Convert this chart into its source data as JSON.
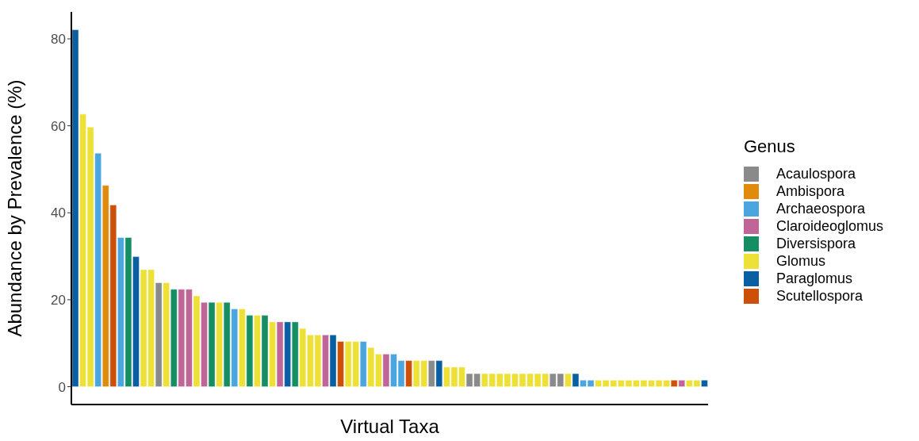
{
  "chart_data": {
    "type": "bar",
    "xlabel": "Virtual Taxa",
    "ylabel": "Abundance by Prevalence (%)",
    "legend_title": "Genus",
    "categories": [
      null,
      null,
      null,
      null,
      null,
      null,
      null,
      null,
      null,
      null,
      null,
      null,
      null,
      null,
      null,
      null,
      null,
      null,
      null,
      null,
      null,
      null,
      null,
      null,
      null,
      null,
      null,
      null,
      null,
      null,
      null,
      null,
      null,
      null,
      null,
      null,
      null,
      null,
      null,
      null,
      null,
      null,
      null,
      null,
      null,
      null,
      null,
      null,
      null,
      null,
      null,
      null,
      null,
      null,
      null,
      null,
      null,
      null,
      null,
      null,
      null,
      null,
      null,
      null,
      null,
      null,
      null,
      null,
      null,
      null,
      null,
      null,
      null,
      null,
      null,
      null,
      null,
      null,
      null,
      null,
      null,
      null,
      null,
      null
    ],
    "stacked": true,
    "ylim": [
      -4.1,
      86.2
    ],
    "yticks": [
      0,
      20,
      40,
      60,
      80
    ],
    "grid": false,
    "legend": "right",
    "series": [
      {
        "name": "Acaulospora",
        "color": "#8a8a8a",
        "values": [
          null,
          null,
          null,
          null,
          null,
          null,
          null,
          null,
          null,
          null,
          null,
          23.9,
          null,
          null,
          null,
          null,
          null,
          null,
          null,
          null,
          null,
          null,
          null,
          null,
          null,
          null,
          null,
          null,
          null,
          null,
          null,
          null,
          null,
          null,
          null,
          null,
          null,
          null,
          null,
          null,
          null,
          null,
          null,
          null,
          null,
          null,
          null,
          6.0,
          null,
          null,
          null,
          null,
          3.0,
          3.0,
          null,
          null,
          null,
          null,
          null,
          null,
          null,
          null,
          null,
          3.0,
          3.0,
          null,
          null,
          null,
          null,
          null,
          null,
          null,
          null,
          null,
          null,
          null,
          null,
          null,
          null,
          null,
          null,
          null,
          null,
          null
        ]
      },
      {
        "name": "Ambispora",
        "color": "#e08c0a",
        "values": [
          null,
          null,
          null,
          null,
          46.3,
          null,
          null,
          null,
          null,
          null,
          null,
          null,
          null,
          null,
          null,
          null,
          null,
          null,
          null,
          null,
          null,
          null,
          null,
          null,
          null,
          null,
          null,
          null,
          null,
          null,
          null,
          null,
          null,
          null,
          null,
          null,
          null,
          null,
          null,
          null,
          null,
          null,
          null,
          null,
          null,
          null,
          null,
          null,
          null,
          null,
          null,
          null,
          null,
          null,
          null,
          null,
          null,
          null,
          null,
          null,
          null,
          null,
          null,
          null,
          null,
          null,
          null,
          null,
          null,
          null,
          null,
          null,
          null,
          null,
          null,
          null,
          null,
          null,
          null,
          null,
          null,
          null,
          null,
          null
        ]
      },
      {
        "name": "Archaeospora",
        "color": "#4ba6e0",
        "values": [
          null,
          null,
          null,
          53.7,
          null,
          null,
          34.3,
          null,
          null,
          null,
          null,
          null,
          null,
          null,
          null,
          null,
          null,
          null,
          null,
          null,
          null,
          17.9,
          null,
          null,
          null,
          null,
          null,
          null,
          null,
          null,
          null,
          null,
          null,
          null,
          null,
          null,
          null,
          null,
          10.4,
          null,
          null,
          null,
          7.5,
          6.0,
          null,
          null,
          null,
          null,
          null,
          null,
          null,
          null,
          null,
          null,
          null,
          null,
          null,
          null,
          null,
          null,
          null,
          null,
          null,
          null,
          null,
          null,
          null,
          1.5,
          1.5,
          null,
          null,
          null,
          null,
          null,
          null,
          null,
          null,
          null,
          null,
          null,
          null,
          null,
          null,
          null
        ]
      },
      {
        "name": "Claroideoglomus",
        "color": "#c06598",
        "values": [
          null,
          null,
          null,
          null,
          null,
          null,
          null,
          null,
          null,
          null,
          null,
          null,
          null,
          null,
          22.4,
          22.4,
          null,
          19.4,
          null,
          null,
          null,
          null,
          null,
          null,
          null,
          null,
          null,
          14.9,
          null,
          null,
          null,
          null,
          null,
          11.9,
          null,
          null,
          null,
          null,
          null,
          null,
          null,
          7.5,
          null,
          null,
          null,
          null,
          null,
          null,
          null,
          null,
          null,
          null,
          null,
          null,
          null,
          null,
          null,
          null,
          null,
          null,
          null,
          null,
          null,
          null,
          null,
          null,
          null,
          null,
          null,
          null,
          null,
          null,
          null,
          null,
          null,
          null,
          null,
          null,
          null,
          null,
          1.5,
          null,
          null,
          null
        ]
      },
      {
        "name": "Diversispora",
        "color": "#168e63",
        "values": [
          null,
          null,
          null,
          null,
          null,
          null,
          null,
          34.3,
          null,
          null,
          null,
          null,
          null,
          22.4,
          null,
          null,
          null,
          null,
          19.4,
          null,
          19.4,
          null,
          null,
          16.4,
          null,
          16.4,
          null,
          null,
          null,
          14.9,
          null,
          null,
          null,
          null,
          null,
          null,
          null,
          null,
          null,
          null,
          null,
          null,
          null,
          null,
          null,
          null,
          null,
          null,
          null,
          null,
          null,
          null,
          null,
          null,
          null,
          null,
          null,
          null,
          null,
          null,
          null,
          null,
          null,
          null,
          null,
          null,
          null,
          null,
          null,
          null,
          null,
          null,
          null,
          null,
          null,
          null,
          null,
          null,
          null,
          null,
          null,
          null,
          null,
          null
        ]
      },
      {
        "name": "Glomus",
        "color": "#ede137",
        "values": [
          null,
          62.7,
          59.7,
          null,
          null,
          null,
          null,
          null,
          null,
          26.9,
          26.9,
          null,
          23.9,
          null,
          null,
          null,
          20.9,
          null,
          null,
          19.4,
          null,
          null,
          17.9,
          null,
          16.4,
          null,
          14.9,
          null,
          null,
          null,
          13.4,
          11.9,
          11.9,
          null,
          null,
          null,
          10.4,
          10.4,
          null,
          9.0,
          7.5,
          null,
          null,
          null,
          null,
          6.0,
          6.0,
          null,
          null,
          4.5,
          4.5,
          4.5,
          null,
          null,
          3.0,
          3.0,
          3.0,
          3.0,
          3.0,
          3.0,
          3.0,
          3.0,
          3.0,
          null,
          null,
          3.0,
          null,
          null,
          null,
          1.5,
          1.5,
          1.5,
          1.5,
          1.5,
          1.5,
          1.5,
          1.5,
          1.5,
          1.5,
          null,
          null,
          1.5,
          1.5,
          null
        ]
      },
      {
        "name": "Paraglomus",
        "color": "#0a5fa3",
        "values": [
          82.1,
          null,
          null,
          null,
          null,
          null,
          null,
          null,
          29.9,
          null,
          null,
          null,
          null,
          null,
          null,
          null,
          null,
          null,
          null,
          null,
          null,
          null,
          null,
          null,
          null,
          null,
          null,
          null,
          14.9,
          null,
          null,
          null,
          null,
          null,
          11.9,
          null,
          null,
          null,
          null,
          null,
          null,
          null,
          null,
          null,
          null,
          null,
          null,
          null,
          6.0,
          null,
          null,
          null,
          null,
          null,
          null,
          null,
          null,
          null,
          null,
          null,
          null,
          null,
          null,
          null,
          null,
          null,
          3.0,
          null,
          null,
          null,
          null,
          null,
          null,
          null,
          null,
          null,
          null,
          null,
          null,
          null,
          null,
          null,
          null,
          1.5
        ]
      },
      {
        "name": "Scutellospora",
        "color": "#cc4f0a",
        "values": [
          null,
          null,
          null,
          null,
          null,
          41.8,
          null,
          null,
          null,
          null,
          null,
          null,
          null,
          null,
          null,
          null,
          null,
          null,
          null,
          null,
          null,
          null,
          null,
          null,
          null,
          null,
          null,
          null,
          null,
          null,
          null,
          null,
          null,
          null,
          null,
          10.4,
          null,
          null,
          null,
          null,
          null,
          null,
          null,
          null,
          6.0,
          null,
          null,
          null,
          null,
          null,
          null,
          null,
          null,
          null,
          null,
          null,
          null,
          null,
          null,
          null,
          null,
          null,
          null,
          null,
          null,
          null,
          null,
          null,
          null,
          null,
          null,
          null,
          null,
          null,
          null,
          null,
          null,
          null,
          null,
          1.5,
          null,
          null,
          null,
          null
        ]
      }
    ]
  }
}
